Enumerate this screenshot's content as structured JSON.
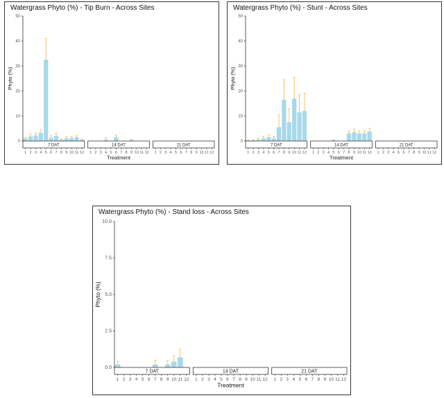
{
  "chart_data": [
    {
      "type": "bar",
      "title": "Watergrass Phyto (%) - Tip Burn - Across Sites",
      "xlabel": "Treatment",
      "ylabel": "Phyto (%)",
      "ylim": [
        0,
        50
      ],
      "yticks": [
        "0",
        "10",
        "20",
        "30",
        "40",
        "50"
      ],
      "categories": [
        "1",
        "2",
        "3",
        "4",
        "5",
        "6",
        "7",
        "8",
        "9",
        "10",
        "11",
        "12"
      ],
      "facets": [
        {
          "label": "7 DAT",
          "values": [
            1.0,
            1.8,
            2.2,
            3.3,
            32.5,
            1.2,
            2.0,
            0.5,
            1.0,
            1.2,
            1.5,
            0.5
          ],
          "errors": [
            0.5,
            1.0,
            1.0,
            1.2,
            8.5,
            1.0,
            1.0,
            0.3,
            0.7,
            0.7,
            0.7,
            0.3
          ]
        },
        {
          "label": "14 DAT",
          "values": [
            0,
            0,
            0,
            0.5,
            0,
            1.5,
            0,
            0,
            0.4,
            0,
            0,
            0
          ],
          "errors": [
            0,
            0,
            0,
            0.8,
            0,
            0.8,
            0,
            0,
            0.4,
            0,
            0,
            0
          ]
        },
        {
          "label": "21 DAT",
          "values": [
            0,
            0,
            0,
            0,
            0,
            0,
            0,
            0,
            0,
            0,
            0,
            0
          ],
          "errors": [
            0,
            0,
            0,
            0,
            0,
            0,
            0,
            0,
            0,
            0,
            0,
            0
          ]
        }
      ],
      "bar_color": "#a8d8ea",
      "error_color": "#f5b041"
    },
    {
      "type": "bar",
      "title": "Watergrass Phyto (%) - Stunt - Across Sites",
      "xlabel": "Treatment",
      "ylabel": "Phyto (%)",
      "ylim": [
        0,
        50
      ],
      "yticks": [
        "0",
        "10",
        "20",
        "30",
        "40",
        "50"
      ],
      "categories": [
        "1",
        "2",
        "3",
        "4",
        "5",
        "6",
        "7",
        "8",
        "9",
        "10",
        "11",
        "12"
      ],
      "facets": [
        {
          "label": "7 DAT",
          "values": [
            0.2,
            0.3,
            0.5,
            1.0,
            1.5,
            1.0,
            5.5,
            16.5,
            7.5,
            17.0,
            11.5,
            12.0
          ],
          "errors": [
            0.2,
            0.3,
            0.5,
            0.8,
            1.0,
            0.8,
            5.0,
            8.0,
            5.5,
            8.5,
            7.0,
            7.0
          ]
        },
        {
          "label": "14 DAT",
          "values": [
            0,
            0,
            0,
            0,
            0.3,
            0,
            0,
            3.0,
            3.5,
            3.0,
            3.0,
            3.8
          ],
          "errors": [
            0,
            0,
            0,
            0,
            0.3,
            0,
            0,
            1.0,
            1.2,
            1.0,
            1.0,
            1.2
          ]
        },
        {
          "label": "21 DAT",
          "values": [
            0,
            0,
            0,
            0,
            0,
            0,
            0,
            0,
            0,
            0,
            0,
            0
          ],
          "errors": [
            0,
            0,
            0,
            0,
            0,
            0,
            0,
            0,
            0,
            0,
            0,
            0
          ]
        }
      ],
      "bar_color": "#a8d8ea",
      "error_color": "#f5b041"
    },
    {
      "type": "bar",
      "title": "Watergrass Phyto (%) - Stand loss - Across Sites",
      "xlabel": "Treatment",
      "ylabel": "Phyto (%)",
      "ylim": [
        0,
        10
      ],
      "yticks": [
        "0.0",
        "2.5",
        "5.0",
        "7.5",
        "10.0"
      ],
      "categories": [
        "1",
        "2",
        "3",
        "4",
        "5",
        "6",
        "7",
        "8",
        "9",
        "10",
        "11",
        "12"
      ],
      "facets": [
        {
          "label": "7 DAT",
          "values": [
            0.2,
            0,
            0,
            0,
            0,
            0,
            0.2,
            0,
            0.2,
            0.4,
            0.7,
            0
          ],
          "errors": [
            0.2,
            0,
            0,
            0,
            0,
            0,
            0.3,
            0,
            0.25,
            0.4,
            0.55,
            0
          ]
        },
        {
          "label": "14 DAT",
          "values": [
            0,
            0,
            0,
            0,
            0,
            0,
            0,
            0,
            0,
            0,
            0,
            0
          ],
          "errors": [
            0,
            0,
            0,
            0,
            0,
            0,
            0,
            0,
            0,
            0,
            0,
            0
          ]
        },
        {
          "label": "21 DAT",
          "values": [
            0,
            0,
            0,
            0,
            0,
            0,
            0,
            0,
            0,
            0,
            0,
            0
          ],
          "errors": [
            0,
            0,
            0,
            0,
            0,
            0,
            0,
            0,
            0,
            0,
            0,
            0
          ]
        }
      ],
      "bar_color": "#a8d8ea",
      "error_color": "#f5b041"
    }
  ]
}
